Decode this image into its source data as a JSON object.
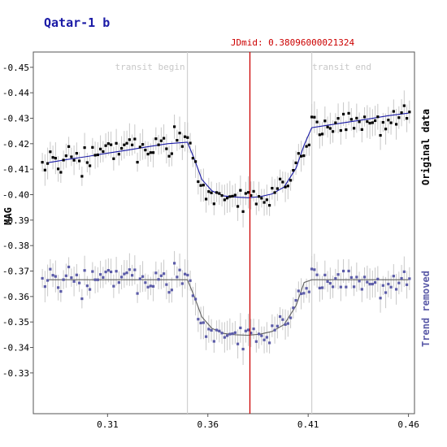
{
  "chart_data": {
    "type": "scatter",
    "title": "Qatar-1 b",
    "ylabel": "MAG",
    "xlim": [
      0.273,
      0.463
    ],
    "ylim": [
      -0.456,
      -0.314
    ],
    "x_ticks": [
      0.31,
      0.36,
      0.41,
      0.46
    ],
    "x_tick_labels": [
      "0.31",
      "0.36",
      "0.41",
      "0.46"
    ],
    "y_ticks": [
      -0.45,
      -0.44,
      -0.43,
      -0.42,
      -0.41,
      -0.4,
      -0.39,
      -0.38,
      -0.37,
      -0.36,
      -0.35,
      -0.34,
      -0.33
    ],
    "y_tick_labels": [
      "-0.45",
      "-0.44",
      "-0.43",
      "-0.42",
      "-0.41",
      "-0.40",
      "-0.39",
      "-0.38",
      "-0.37",
      "-0.36",
      "-0.35",
      "-0.34",
      "-0.33"
    ],
    "jdmid_label": "JDmid: 0.38096000021324",
    "jdmid": 0.38096,
    "transit_begin": 0.3498,
    "transit_end": 0.4118,
    "transit_begin_label": "transit begin",
    "transit_end_label": "transit end",
    "colors": {
      "original": "#000000",
      "original_fit": "#1a1aa6",
      "detrended": "#5b5ba8",
      "detrended_fit": "#606060",
      "jdmid_line": "#cc0000",
      "transit_lines": "#d0d0d0",
      "error_bars": "#c8c8c8"
    },
    "series": [
      {
        "name": "Original data",
        "fit": {
          "x": [
            0.28,
            0.29,
            0.3,
            0.31,
            0.32,
            0.33,
            0.34,
            0.3498,
            0.353,
            0.357,
            0.362,
            0.368,
            0.374,
            0.38,
            0.386,
            0.392,
            0.398,
            0.404,
            0.408,
            0.4118,
            0.42,
            0.43,
            0.44,
            0.45,
            0.46
          ],
          "y": [
            -0.4125,
            -0.4138,
            -0.415,
            -0.4163,
            -0.4175,
            -0.4188,
            -0.42,
            -0.4206,
            -0.4145,
            -0.406,
            -0.4015,
            -0.3995,
            -0.399,
            -0.3988,
            -0.3992,
            -0.4003,
            -0.403,
            -0.4105,
            -0.4195,
            -0.4263,
            -0.4273,
            -0.4285,
            -0.4297,
            -0.431,
            -0.432
          ]
        }
      },
      {
        "name": "Trend removed",
        "fit": {
          "x": [
            0.28,
            0.3498,
            0.353,
            0.357,
            0.362,
            0.368,
            0.374,
            0.38,
            0.386,
            0.392,
            0.398,
            0.404,
            0.408,
            0.4118,
            0.46
          ],
          "y": [
            -0.3666,
            -0.3666,
            -0.3605,
            -0.352,
            -0.3475,
            -0.3455,
            -0.345,
            -0.3448,
            -0.3452,
            -0.3463,
            -0.349,
            -0.3565,
            -0.3655,
            -0.3666,
            -0.3666
          ]
        }
      }
    ],
    "side_labels": {
      "top": "Original data",
      "bottom": "Trend removed"
    }
  }
}
